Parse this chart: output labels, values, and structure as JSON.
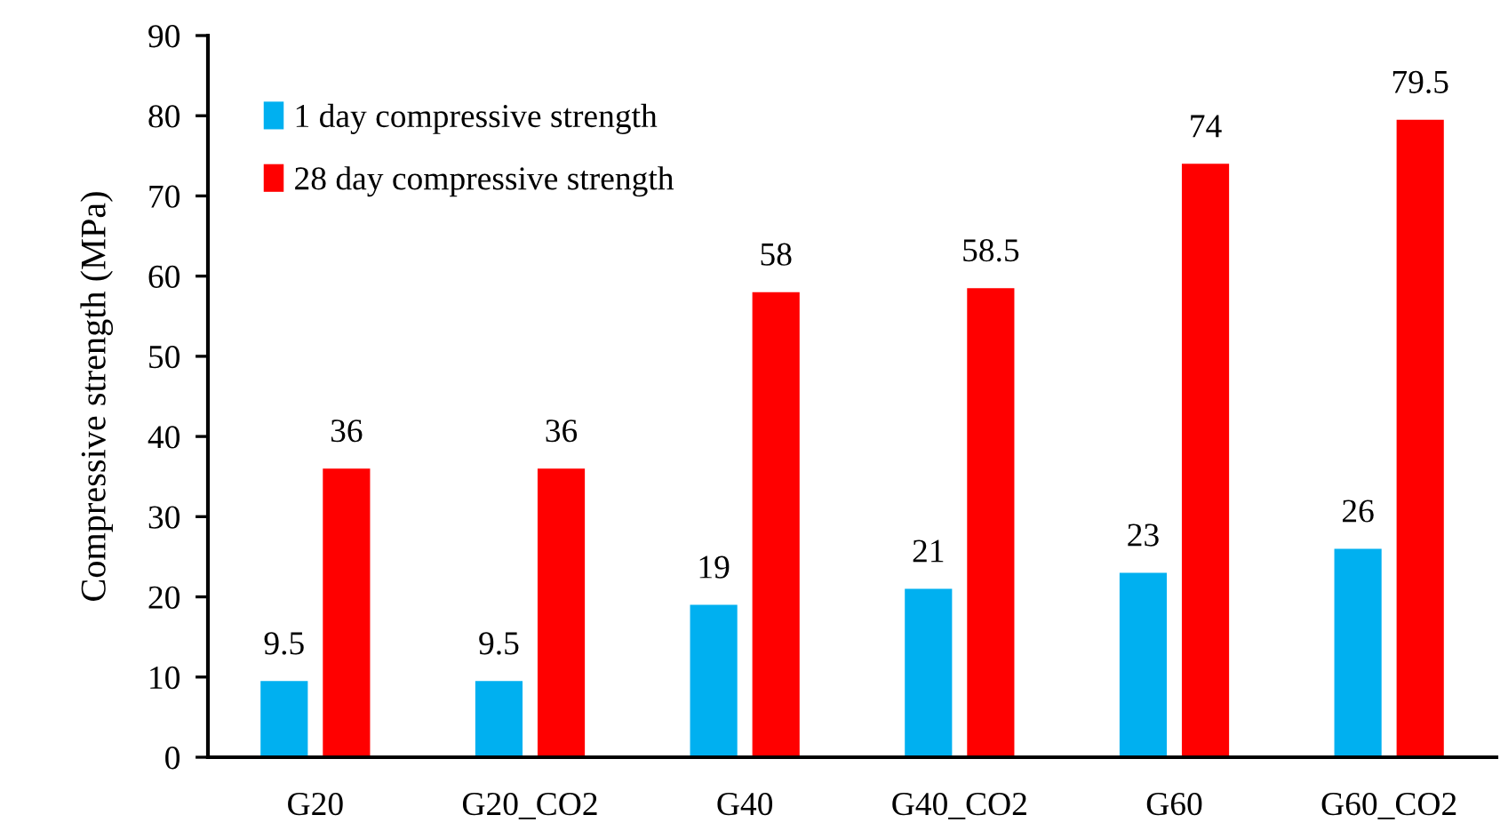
{
  "chart_data": {
    "type": "bar",
    "ylabel": "Compressive strength (MPa)",
    "categories": [
      "G20",
      "G20_CO2",
      "G40",
      "G40_CO2",
      "G60",
      "G60_CO2"
    ],
    "series": [
      {
        "name": "1 day compressive strength",
        "color": "#00b0f0",
        "values": [
          9.5,
          9.5,
          19,
          21,
          23,
          26
        ]
      },
      {
        "name": "28 day compressive strength",
        "color": "#ff0000",
        "values": [
          36,
          36,
          58,
          58.5,
          74,
          79.5
        ]
      }
    ],
    "ylim": [
      0,
      90
    ],
    "yticks": [
      0,
      10,
      20,
      30,
      40,
      50,
      60,
      70,
      80,
      90
    ],
    "data_labels": true,
    "grid": false,
    "legend": "top left"
  }
}
